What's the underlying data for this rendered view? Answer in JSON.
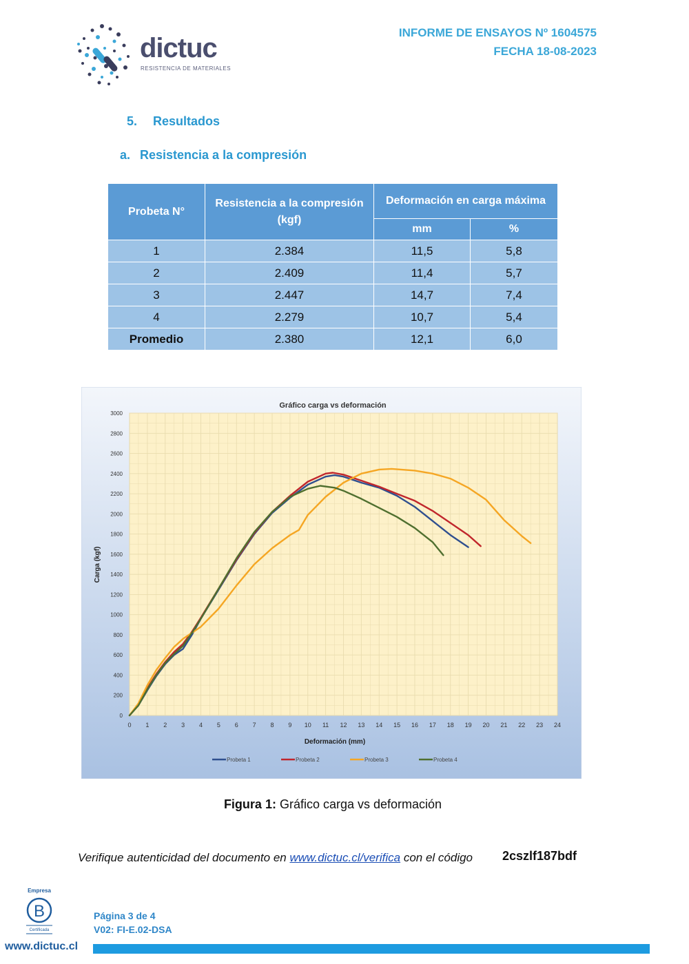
{
  "header": {
    "logo_text": "dictuc",
    "logo_subtitle": "RESISTENCIA DE MATERIALES",
    "report_label": "INFORME DE ENSAYOS Nº 1604575",
    "date_label": "FECHA 18-08-2023"
  },
  "section": {
    "number": "5.",
    "title": "Resultados"
  },
  "subsection": {
    "letter": "a.",
    "title": "Resistencia a la compresión"
  },
  "table": {
    "col_probeta": "Probeta N°",
    "col_resistencia_line1": "Resistencia a la compresión",
    "col_resistencia_line2": "(kgf)",
    "col_deformacion": "Deformación en carga máxima",
    "sub_mm": "mm",
    "sub_pct": "%",
    "rows": [
      {
        "probeta": "1",
        "resistencia": "2.384",
        "mm": "11,5",
        "pct": "5,8"
      },
      {
        "probeta": "2",
        "resistencia": "2.409",
        "mm": "11,4",
        "pct": "5,7"
      },
      {
        "probeta": "3",
        "resistencia": "2.447",
        "mm": "14,7",
        "pct": "7,4"
      },
      {
        "probeta": "4",
        "resistencia": "2.279",
        "mm": "10,7",
        "pct": "5,4"
      },
      {
        "probeta": "Promedio",
        "resistencia": "2.380",
        "mm": "12,1",
        "pct": "6,0"
      }
    ]
  },
  "chart_data": {
    "type": "line",
    "title": "Gráfico carga vs deformación",
    "xlabel": "Deformación (mm)",
    "ylabel": "Carga (kgf)",
    "xlim": [
      0,
      24
    ],
    "ylim": [
      0,
      3000
    ],
    "x_ticks": [
      0,
      1,
      2,
      3,
      4,
      5,
      6,
      7,
      8,
      9,
      10,
      11,
      12,
      13,
      14,
      15,
      16,
      17,
      18,
      19,
      20,
      21,
      22,
      23,
      24
    ],
    "y_ticks": [
      0,
      200,
      400,
      600,
      800,
      1000,
      1200,
      1400,
      1600,
      1800,
      2000,
      2200,
      2400,
      2600,
      2800,
      3000
    ],
    "grid": true,
    "legend_position": "bottom",
    "series": [
      {
        "name": "Probeta 1",
        "color": "#2f4f8f",
        "points": [
          [
            0,
            0
          ],
          [
            0.5,
            100
          ],
          [
            1,
            250
          ],
          [
            1.5,
            390
          ],
          [
            2,
            510
          ],
          [
            2.5,
            600
          ],
          [
            3,
            660
          ],
          [
            3.5,
            800
          ],
          [
            4,
            960
          ],
          [
            5,
            1250
          ],
          [
            6,
            1540
          ],
          [
            7,
            1800
          ],
          [
            8,
            2010
          ],
          [
            9,
            2160
          ],
          [
            10,
            2290
          ],
          [
            11,
            2370
          ],
          [
            11.5,
            2384
          ],
          [
            12,
            2370
          ],
          [
            13,
            2310
          ],
          [
            14,
            2260
          ],
          [
            15,
            2180
          ],
          [
            16,
            2070
          ],
          [
            17,
            1930
          ],
          [
            18,
            1790
          ],
          [
            19,
            1670
          ]
        ]
      },
      {
        "name": "Probeta 2",
        "color": "#c0262c",
        "points": [
          [
            0,
            0
          ],
          [
            0.5,
            110
          ],
          [
            1,
            270
          ],
          [
            1.5,
            410
          ],
          [
            2,
            530
          ],
          [
            2.5,
            630
          ],
          [
            3,
            710
          ],
          [
            3.5,
            830
          ],
          [
            4,
            970
          ],
          [
            5,
            1260
          ],
          [
            6,
            1550
          ],
          [
            7,
            1810
          ],
          [
            8,
            2020
          ],
          [
            9,
            2180
          ],
          [
            10,
            2320
          ],
          [
            11,
            2400
          ],
          [
            11.4,
            2409
          ],
          [
            12,
            2390
          ],
          [
            13,
            2330
          ],
          [
            14,
            2270
          ],
          [
            15,
            2200
          ],
          [
            16,
            2130
          ],
          [
            17,
            2030
          ],
          [
            18,
            1910
          ],
          [
            19,
            1790
          ],
          [
            19.7,
            1680
          ]
        ]
      },
      {
        "name": "Probeta 3",
        "color": "#f5a623",
        "points": [
          [
            0,
            0
          ],
          [
            0.5,
            120
          ],
          [
            1,
            300
          ],
          [
            1.5,
            450
          ],
          [
            2,
            570
          ],
          [
            2.5,
            680
          ],
          [
            3,
            760
          ],
          [
            4,
            880
          ],
          [
            5,
            1060
          ],
          [
            6,
            1290
          ],
          [
            7,
            1500
          ],
          [
            8,
            1660
          ],
          [
            9,
            1790
          ],
          [
            9.5,
            1840
          ],
          [
            10,
            1990
          ],
          [
            11,
            2170
          ],
          [
            12,
            2310
          ],
          [
            13,
            2400
          ],
          [
            14,
            2440
          ],
          [
            14.7,
            2447
          ],
          [
            16,
            2430
          ],
          [
            17,
            2400
          ],
          [
            18,
            2350
          ],
          [
            19,
            2260
          ],
          [
            20,
            2140
          ],
          [
            21,
            1940
          ],
          [
            22,
            1780
          ],
          [
            22.5,
            1710
          ]
        ]
      },
      {
        "name": "Probeta 4",
        "color": "#4f6f2f",
        "points": [
          [
            0,
            0
          ],
          [
            0.5,
            100
          ],
          [
            1,
            260
          ],
          [
            1.5,
            400
          ],
          [
            2,
            520
          ],
          [
            2.5,
            610
          ],
          [
            3,
            690
          ],
          [
            3.5,
            820
          ],
          [
            4,
            960
          ],
          [
            5,
            1260
          ],
          [
            6,
            1560
          ],
          [
            7,
            1820
          ],
          [
            8,
            2020
          ],
          [
            9,
            2170
          ],
          [
            10,
            2250
          ],
          [
            10.7,
            2279
          ],
          [
            11.5,
            2260
          ],
          [
            12,
            2230
          ],
          [
            13,
            2150
          ],
          [
            14,
            2060
          ],
          [
            15,
            1970
          ],
          [
            16,
            1860
          ],
          [
            17,
            1720
          ],
          [
            17.6,
            1590
          ]
        ]
      }
    ]
  },
  "figure_caption": {
    "label": "Figura 1:",
    "text": " Gráfico carga vs deformación"
  },
  "verify": {
    "prefix": "Verifique autenticidad del documento en ",
    "link": "www.dictuc.cl/verifica",
    "suffix": " con el código",
    "code": "2cszlf187bdf"
  },
  "footer": {
    "bcorp_top": "Empresa",
    "bcorp_letter": "B",
    "bcorp_bottom": "Certificada",
    "website": "www.dictuc.cl",
    "page": "Página 3 de 4",
    "doc_code": "V02: FI-E.02-DSA"
  },
  "colors": {
    "accent": "#2a98d0",
    "table_header": "#5b9bd5",
    "table_cell": "#9dc3e6",
    "plot_bg": "#fdf1c9",
    "footer_bar": "#1d9be0"
  }
}
